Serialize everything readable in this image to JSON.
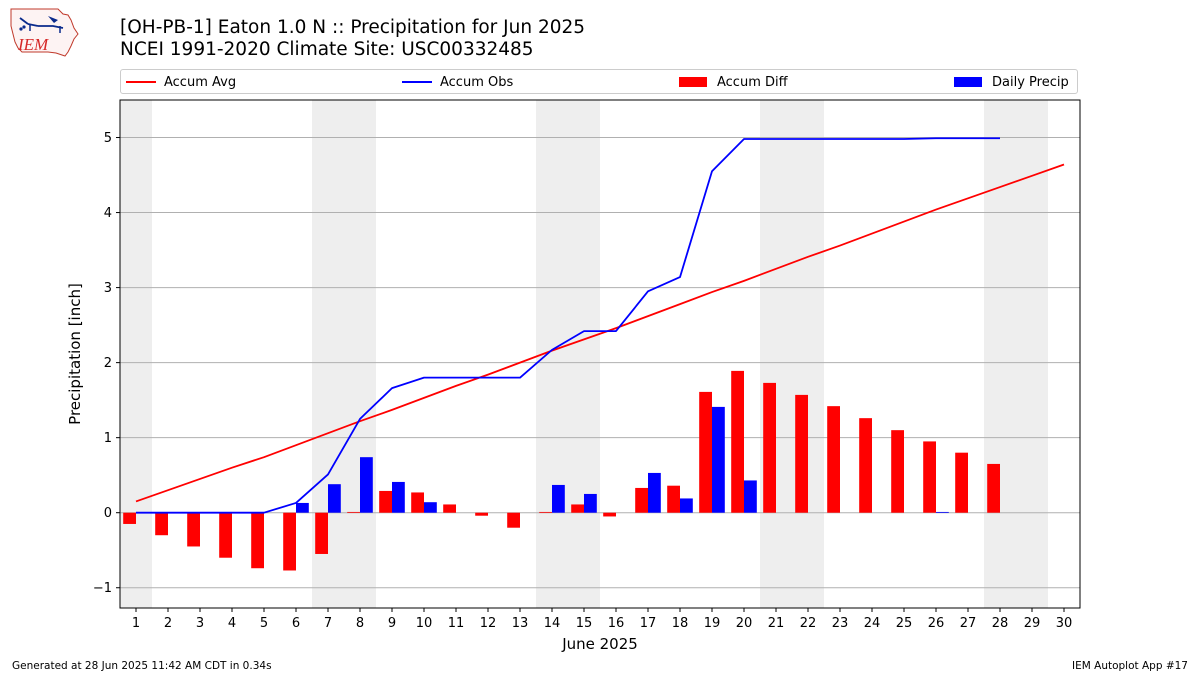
{
  "header": {
    "title_line1": "[OH-PB-1] Eaton 1.0 N :: Precipitation for Jun 2025",
    "title_line2": "NCEI 1991-2020 Climate Site: USC00332485",
    "logo_text": "IEM"
  },
  "footer": {
    "left": "Generated at 28 Jun 2025 11:42 AM CDT in 0.34s",
    "right": "IEM Autoplot App #17"
  },
  "chart_data": {
    "type": "bar",
    "xlabel": "June 2025",
    "ylabel": "Precipitation [inch]",
    "ylim": [
      -1.27,
      5.5
    ],
    "yticks": [
      -1,
      0,
      1,
      2,
      3,
      4,
      5
    ],
    "grid": true,
    "legend_position": "top, above plot",
    "shaded_weekends": [
      [
        1,
        1
      ],
      [
        7,
        8
      ],
      [
        14,
        15
      ],
      [
        21,
        22
      ],
      [
        28,
        29
      ]
    ],
    "categories": [
      "1",
      "2",
      "3",
      "4",
      "5",
      "6",
      "7",
      "8",
      "9",
      "10",
      "11",
      "12",
      "13",
      "14",
      "15",
      "16",
      "17",
      "18",
      "19",
      "20",
      "21",
      "22",
      "23",
      "24",
      "25",
      "26",
      "27",
      "28",
      "29",
      "30"
    ],
    "series": [
      {
        "name": "Accum Avg",
        "kind": "line",
        "color": "#ff0000",
        "x": [
          1,
          2,
          3,
          4,
          5,
          6,
          7,
          8,
          9,
          10,
          11,
          12,
          13,
          14,
          15,
          16,
          17,
          18,
          19,
          20,
          21,
          22,
          23,
          24,
          25,
          26,
          27,
          28,
          29,
          30
        ],
        "values": [
          0.15,
          0.3,
          0.45,
          0.6,
          0.74,
          0.9,
          1.06,
          1.22,
          1.37,
          1.53,
          1.69,
          1.84,
          2.0,
          2.16,
          2.31,
          2.46,
          2.62,
          2.78,
          2.94,
          3.09,
          3.25,
          3.41,
          3.56,
          3.72,
          3.88,
          4.04,
          4.19,
          4.34,
          4.49,
          4.64
        ]
      },
      {
        "name": "Accum Obs",
        "kind": "line",
        "color": "#0000ff",
        "x": [
          1,
          2,
          3,
          4,
          5,
          6,
          7,
          8,
          9,
          10,
          11,
          12,
          13,
          14,
          15,
          16,
          17,
          18,
          19,
          20,
          21,
          22,
          23,
          24,
          25,
          26,
          27,
          28
        ],
        "values": [
          0,
          0,
          0,
          0,
          0,
          0.13,
          0.51,
          1.25,
          1.66,
          1.8,
          1.8,
          1.8,
          1.8,
          2.17,
          2.42,
          2.42,
          2.95,
          3.14,
          4.55,
          4.98,
          4.98,
          4.98,
          4.98,
          4.98,
          4.98,
          4.99,
          4.99,
          4.99
        ]
      },
      {
        "name": "Accum Diff",
        "kind": "bar",
        "color": "#ff0000",
        "x": [
          1,
          2,
          3,
          4,
          5,
          6,
          7,
          8,
          9,
          10,
          11,
          12,
          13,
          14,
          15,
          16,
          17,
          18,
          19,
          20,
          21,
          22,
          23,
          24,
          25,
          26,
          27,
          28
        ],
        "values": [
          -0.15,
          -0.3,
          -0.45,
          -0.6,
          -0.74,
          -0.77,
          -0.55,
          0.01,
          0.29,
          0.27,
          0.11,
          -0.04,
          -0.2,
          0.01,
          0.11,
          -0.05,
          0.33,
          0.36,
          1.61,
          1.89,
          1.73,
          1.57,
          1.42,
          1.26,
          1.1,
          0.95,
          0.8,
          0.65
        ]
      },
      {
        "name": "Daily Precip",
        "kind": "bar",
        "color": "#0000ff",
        "x": [
          6,
          7,
          8,
          9,
          10,
          14,
          15,
          17,
          18,
          19,
          20,
          26
        ],
        "values": [
          0.13,
          0.38,
          0.74,
          0.41,
          0.14,
          0.37,
          0.25,
          0.53,
          0.19,
          1.41,
          0.43,
          0.01
        ]
      }
    ]
  }
}
